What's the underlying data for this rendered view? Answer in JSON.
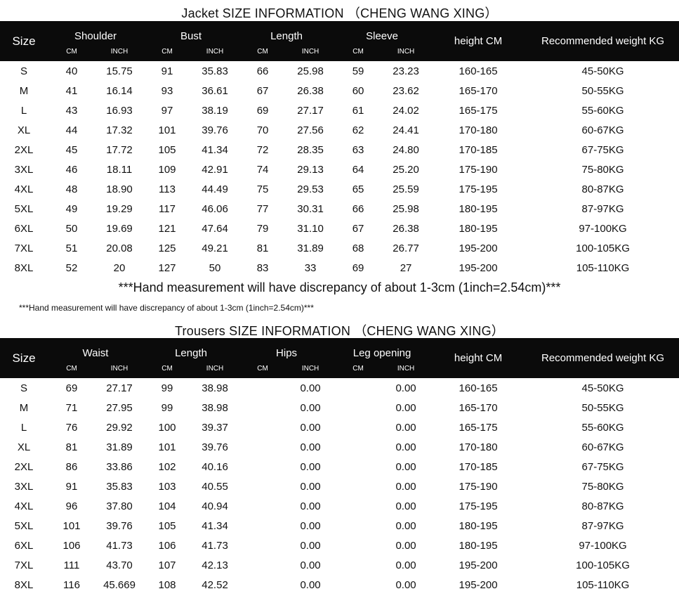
{
  "jacket": {
    "title": "Jacket  SIZE INFORMATION  （CHENG WANG XING）",
    "size_label": "Size",
    "groups": [
      "Shoulder",
      "Bust",
      "Length",
      "Sleeve"
    ],
    "units": [
      "CM",
      "INCH"
    ],
    "height_label": "height  CM",
    "weight_label": "Recommended weight KG",
    "rows": [
      [
        "S",
        "40",
        "15.75",
        "91",
        "35.83",
        "66",
        "25.98",
        "59",
        "23.23",
        "160-165",
        "45-50KG"
      ],
      [
        "M",
        "41",
        "16.14",
        "93",
        "36.61",
        "67",
        "26.38",
        "60",
        "23.62",
        "165-170",
        "50-55KG"
      ],
      [
        "L",
        "43",
        "16.93",
        "97",
        "38.19",
        "69",
        "27.17",
        "61",
        "24.02",
        "165-175",
        "55-60KG"
      ],
      [
        "XL",
        "44",
        "17.32",
        "101",
        "39.76",
        "70",
        "27.56",
        "62",
        "24.41",
        "170-180",
        "60-67KG"
      ],
      [
        "2XL",
        "45",
        "17.72",
        "105",
        "41.34",
        "72",
        "28.35",
        "63",
        "24.80",
        "170-185",
        "67-75KG"
      ],
      [
        "3XL",
        "46",
        "18.11",
        "109",
        "42.91",
        "74",
        "29.13",
        "64",
        "25.20",
        "175-190",
        "75-80KG"
      ],
      [
        "4XL",
        "48",
        "18.90",
        "113",
        "44.49",
        "75",
        "29.53",
        "65",
        "25.59",
        "175-195",
        "80-87KG"
      ],
      [
        "5XL",
        "49",
        "19.29",
        "117",
        "46.06",
        "77",
        "30.31",
        "66",
        "25.98",
        "180-195",
        "87-97KG"
      ],
      [
        "6XL",
        "50",
        "19.69",
        "121",
        "47.64",
        "79",
        "31.10",
        "67",
        "26.38",
        "180-195",
        "97-100KG"
      ],
      [
        "7XL",
        "51",
        "20.08",
        "125",
        "49.21",
        "81",
        "31.89",
        "68",
        "26.77",
        "195-200",
        "100-105KG"
      ],
      [
        "8XL",
        "52",
        "20",
        "127",
        "50",
        "83",
        "33",
        "69",
        "27",
        "195-200",
        "105-110KG"
      ]
    ]
  },
  "note_large": "***Hand measurement will have discrepancy of about 1-3cm (1inch=2.54cm)***",
  "note_small": "***Hand measurement will have discrepancy of about 1-3cm (1inch=2.54cm)***",
  "trousers": {
    "title": "Trousers   SIZE INFORMATION    （CHENG WANG XING）",
    "size_label": "Size",
    "groups": [
      "Waist",
      "Length",
      "Hips",
      "Leg opening"
    ],
    "units": [
      "CM",
      "INCH"
    ],
    "height_label": "height  CM",
    "weight_label": "Recommended weight KG",
    "rows": [
      [
        "S",
        "69",
        "27.17",
        "99",
        "38.98",
        "",
        "0.00",
        "",
        "0.00",
        "160-165",
        "45-50KG"
      ],
      [
        "M",
        "71",
        "27.95",
        "99",
        "38.98",
        "",
        "0.00",
        "",
        "0.00",
        "165-170",
        "50-55KG"
      ],
      [
        "L",
        "76",
        "29.92",
        "100",
        "39.37",
        "",
        "0.00",
        "",
        "0.00",
        "165-175",
        "55-60KG"
      ],
      [
        "XL",
        "81",
        "31.89",
        "101",
        "39.76",
        "",
        "0.00",
        "",
        "0.00",
        "170-180",
        "60-67KG"
      ],
      [
        "2XL",
        "86",
        "33.86",
        "102",
        "40.16",
        "",
        "0.00",
        "",
        "0.00",
        "170-185",
        "67-75KG"
      ],
      [
        "3XL",
        "91",
        "35.83",
        "103",
        "40.55",
        "",
        "0.00",
        "",
        "0.00",
        "175-190",
        "75-80KG"
      ],
      [
        "4XL",
        "96",
        "37.80",
        "104",
        "40.94",
        "",
        "0.00",
        "",
        "0.00",
        "175-195",
        "80-87KG"
      ],
      [
        "5XL",
        "101",
        "39.76",
        "105",
        "41.34",
        "",
        "0.00",
        "",
        "0.00",
        "180-195",
        "87-97KG"
      ],
      [
        "6XL",
        "106",
        "41.73",
        "106",
        "41.73",
        "",
        "0.00",
        "",
        "0.00",
        "180-195",
        "97-100KG"
      ],
      [
        "7XL",
        "111",
        "43.70",
        "107",
        "42.13",
        "",
        "0.00",
        "",
        "0.00",
        "195-200",
        "100-105KG"
      ],
      [
        "8XL",
        "116",
        "45.669",
        "108",
        "42.52",
        "",
        "0.00",
        "",
        "0.00",
        "195-200",
        "105-110KG"
      ]
    ]
  }
}
